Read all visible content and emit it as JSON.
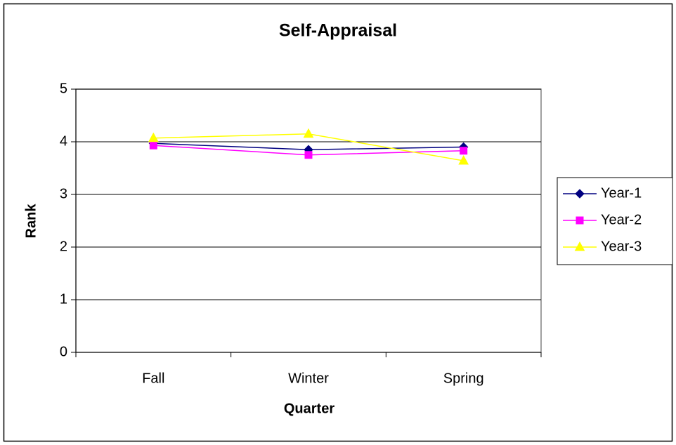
{
  "chart_data": {
    "type": "line",
    "title": "Self-Appraisal",
    "x_label": "Quarter",
    "y_label": "Rank",
    "categories": [
      "Fall",
      "Winter",
      "Spring"
    ],
    "series": [
      {
        "name": "Year-1",
        "color": "#000080",
        "marker": "diamond",
        "values": [
          3.97,
          3.85,
          3.9
        ]
      },
      {
        "name": "Year-2",
        "color": "#ff00ff",
        "marker": "square",
        "values": [
          3.93,
          3.75,
          3.83
        ]
      },
      {
        "name": "Year-3",
        "color": "#ffff00",
        "marker": "triangle",
        "values": [
          4.07,
          4.15,
          3.64
        ]
      }
    ],
    "ylim": [
      0,
      5
    ],
    "yticks": [
      0,
      1,
      2,
      3,
      4,
      5
    ],
    "grid": true,
    "legend": "right"
  }
}
